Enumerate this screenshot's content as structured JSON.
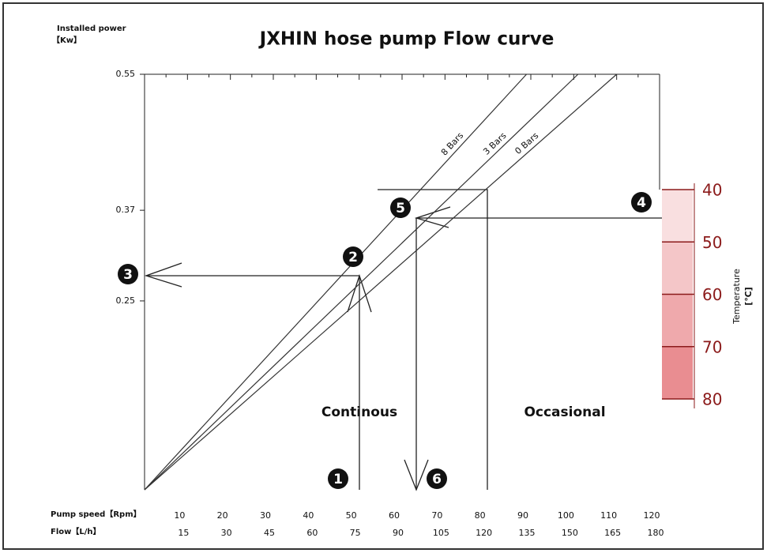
{
  "chart_data": {
    "type": "line",
    "title": "JXHIN hose pump Flow curve",
    "y_label": "Installed power",
    "y_unit": "【Kw】",
    "x_label": "Pump speed【Rpm】",
    "x2_label": "Flow【L/h】",
    "xlim": [
      0,
      120
    ],
    "xticks": [
      10,
      20,
      30,
      40,
      50,
      60,
      70,
      80,
      90,
      100,
      110,
      120
    ],
    "x2ticks": [
      15,
      30,
      45,
      60,
      75,
      90,
      105,
      120,
      135,
      150,
      165,
      180
    ],
    "ylim": [
      0,
      0.55
    ],
    "yticks": [
      0.25,
      0.37,
      0.55
    ],
    "series": [
      {
        "name": "8 Bars",
        "color": "#333333",
        "x": [
          0,
          89
        ],
        "values": [
          0,
          0.55
        ]
      },
      {
        "name": "3 Bars",
        "color": "#333333",
        "x": [
          0,
          101
        ],
        "values": [
          0,
          0.55
        ]
      },
      {
        "name": "0 Bars",
        "color": "#333333",
        "x": [
          0,
          110
        ],
        "values": [
          0,
          0.55
        ]
      }
    ],
    "regions": [
      "Continous",
      "Occasional"
    ],
    "markers": [
      "1",
      "2",
      "3",
      "4",
      "5",
      "6"
    ],
    "temperature": {
      "label": "Temperature",
      "unit": "[℃]",
      "ticks": [
        40,
        50,
        60,
        70,
        80
      ],
      "colors": [
        "#f9dfe0",
        "#f4c6c8",
        "#efa9ac",
        "#e98d91"
      ],
      "tick_color": "#8b1a1a"
    }
  }
}
